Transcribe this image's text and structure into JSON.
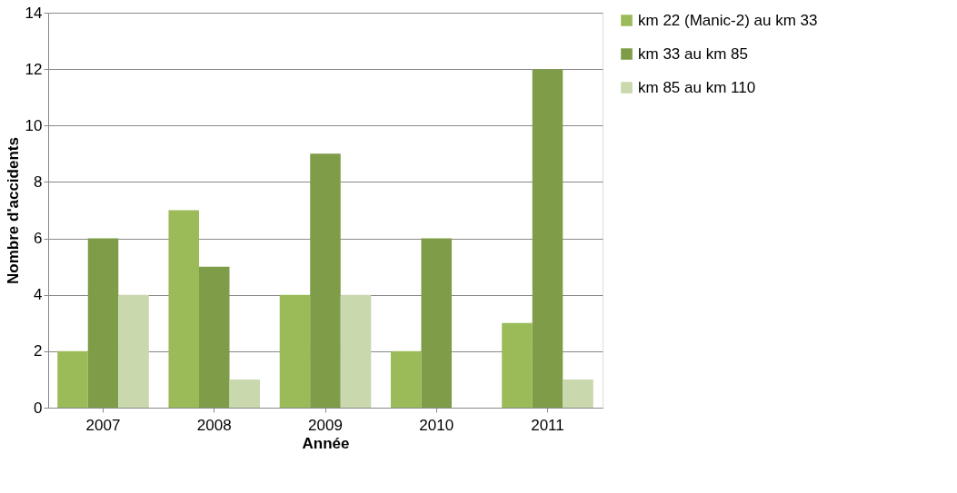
{
  "chart_data": {
    "type": "bar",
    "xlabel": "Année",
    "ylabel": "Nombre d'accidents",
    "categories": [
      "2007",
      "2008",
      "2009",
      "2010",
      "2011"
    ],
    "series": [
      {
        "name": "km 22 (Manic-2) au km 33",
        "color": "#9bbb59",
        "values": [
          2,
          7,
          4,
          2,
          3
        ]
      },
      {
        "name": "km 33 au km 85",
        "color": "#7f9c48",
        "values": [
          6,
          5,
          9,
          6,
          12
        ]
      },
      {
        "name": "km 85 au km 110",
        "color": "#c9d8ad",
        "values": [
          4,
          1,
          4,
          0,
          1
        ]
      }
    ],
    "ylim": [
      0,
      14
    ],
    "yticks": [
      0,
      2,
      4,
      6,
      8,
      10,
      12,
      14
    ],
    "grid": "y",
    "legend": "right"
  }
}
